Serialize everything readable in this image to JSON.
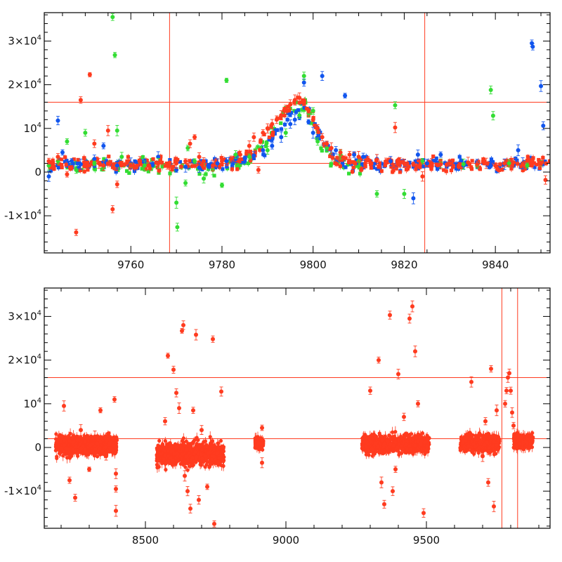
{
  "colors": {
    "red": "#ff3b1f",
    "green": "#33dd33",
    "blue": "#1155ee",
    "frame": "#000000"
  },
  "chart_data": [
    {
      "type": "scatter",
      "id": "top",
      "title": "",
      "xlabel": "",
      "ylabel": "",
      "xlim": [
        9741,
        9852
      ],
      "ylim": [
        -18500,
        36500
      ],
      "x_ticks": [
        {
          "value": 9760,
          "label": "9760"
        },
        {
          "value": 9780,
          "label": "9780"
        },
        {
          "value": 9800,
          "label": "9800"
        },
        {
          "value": 9820,
          "label": "9820"
        },
        {
          "value": 9840,
          "label": "9840"
        }
      ],
      "y_ticks": [
        {
          "value": 30000,
          "label": "3×10",
          "sup": "4"
        },
        {
          "value": 20000,
          "label": "2×10",
          "sup": "4"
        },
        {
          "value": 10000,
          "label": "10",
          "sup": "4"
        },
        {
          "value": 0,
          "label": "0",
          "sup": ""
        },
        {
          "value": -10000,
          "label": "-1×10",
          "sup": "4"
        }
      ],
      "hlines": [
        16000,
        2000
      ],
      "vlines": [
        9768.5,
        9824.5
      ],
      "series": [
        {
          "name": "blue",
          "color": "blue",
          "points": [
            [
              9742,
              -1000
            ],
            [
              9744,
              11800
            ],
            [
              9745,
              4500
            ],
            [
              9747,
              2500
            ],
            [
              9749,
              1800
            ],
            [
              9752,
              3000
            ],
            [
              9754,
              6000
            ],
            [
              9757,
              1500
            ],
            [
              9760,
              2000
            ],
            [
              9763,
              2500
            ],
            [
              9766,
              3500
            ],
            [
              9770,
              500
            ],
            [
              9772,
              1200
            ],
            [
              9775,
              1000
            ],
            [
              9777,
              1500
            ],
            [
              9779,
              2000
            ],
            [
              9781,
              2500
            ],
            [
              9783,
              3000
            ],
            [
              9785,
              3200
            ],
            [
              9787,
              3800
            ],
            [
              9789,
              5000
            ],
            [
              9791,
              6000
            ],
            [
              9793,
              8000
            ],
            [
              9795,
              11000
            ],
            [
              9796,
              12000
            ],
            [
              9797,
              12500
            ],
            [
              9798,
              20500
            ],
            [
              9799,
              11500
            ],
            [
              9800,
              9000
            ],
            [
              9801,
              8000
            ],
            [
              9802,
              22000
            ],
            [
              9803,
              6000
            ],
            [
              9805,
              5000
            ],
            [
              9807,
              17500
            ],
            [
              9809,
              4000
            ],
            [
              9811,
              3500
            ],
            [
              9814,
              3000
            ],
            [
              9817,
              2500
            ],
            [
              9820,
              2000
            ],
            [
              9822,
              -6000
            ],
            [
              9823,
              4000
            ],
            [
              9825,
              2000
            ],
            [
              9828,
              4000
            ],
            [
              9830,
              2000
            ],
            [
              9833,
              1500
            ],
            [
              9836,
              2000
            ],
            [
              9839,
              1500
            ],
            [
              9842,
              1800
            ],
            [
              9845,
              5000
            ],
            [
              9846,
              2000
            ],
            [
              9848,
              29500
            ],
            [
              9848.2,
              28700
            ],
            [
              9850,
              19700
            ],
            [
              9850.5,
              10600
            ]
          ]
        },
        {
          "name": "green",
          "color": "green",
          "points": [
            [
              9742,
              1500
            ],
            [
              9744,
              2500
            ],
            [
              9746,
              7000
            ],
            [
              9748,
              500
            ],
            [
              9750,
              9000
            ],
            [
              9752,
              2000
            ],
            [
              9754,
              1000
            ],
            [
              9756,
              35500
            ],
            [
              9756.5,
              26800
            ],
            [
              9757,
              9500
            ],
            [
              9758,
              3500
            ],
            [
              9760,
              1500
            ],
            [
              9763,
              1500
            ],
            [
              9766,
              2000
            ],
            [
              9770,
              -7000
            ],
            [
              9770.2,
              -12600
            ],
            [
              9772,
              -2500
            ],
            [
              9772.5,
              5500
            ],
            [
              9774,
              2500
            ],
            [
              9776,
              -1500
            ],
            [
              9778,
              500
            ],
            [
              9780,
              -3000
            ],
            [
              9781,
              21000
            ],
            [
              9783,
              4000
            ],
            [
              9786,
              3500
            ],
            [
              9790,
              5000
            ],
            [
              9794,
              9000
            ],
            [
              9797,
              13000
            ],
            [
              9798,
              22000
            ],
            [
              9799,
              13500
            ],
            [
              9800,
              14000
            ],
            [
              9801,
              7000
            ],
            [
              9803,
              5500
            ],
            [
              9806,
              4000
            ],
            [
              9810,
              2500
            ],
            [
              9814,
              -5000
            ],
            [
              9818,
              15300
            ],
            [
              9820,
              -5000
            ],
            [
              9824,
              2500
            ],
            [
              9828,
              2000
            ],
            [
              9833,
              1800
            ],
            [
              9836,
              1500
            ],
            [
              9839,
              18800
            ],
            [
              9839.5,
              12900
            ],
            [
              9843,
              2000
            ],
            [
              9847,
              1500
            ],
            [
              9850,
              2000
            ]
          ]
        },
        {
          "name": "red",
          "color": "red",
          "points": [
            [
              9742,
              2500
            ],
            [
              9743,
              1500
            ],
            [
              9744,
              3500
            ],
            [
              9746,
              -500
            ],
            [
              9747,
              1000
            ],
            [
              9748,
              -13800
            ],
            [
              9749,
              16500
            ],
            [
              9751,
              22300
            ],
            [
              9752,
              6500
            ],
            [
              9753,
              2000
            ],
            [
              9754,
              1500
            ],
            [
              9755,
              9500
            ],
            [
              9756,
              -8500
            ],
            [
              9757,
              -2800
            ],
            [
              9758,
              2000
            ],
            [
              9760,
              1500
            ],
            [
              9762,
              2500
            ],
            [
              9764,
              1500
            ],
            [
              9766,
              2000
            ],
            [
              9768,
              1500
            ],
            [
              9770,
              2000
            ],
            [
              9772,
              2500
            ],
            [
              9773,
              6500
            ],
            [
              9774,
              8000
            ],
            [
              9775,
              3500
            ],
            [
              9776,
              2500
            ],
            [
              9778,
              1500
            ],
            [
              9780,
              2500
            ],
            [
              9782,
              3000
            ],
            [
              9784,
              4000
            ],
            [
              9786,
              6000
            ],
            [
              9787,
              8000
            ],
            [
              9788,
              500
            ],
            [
              9789,
              9000
            ],
            [
              9790,
              10000
            ],
            [
              9791,
              11000
            ],
            [
              9792,
              12000
            ],
            [
              9793,
              13000
            ],
            [
              9794,
              14500
            ],
            [
              9795,
              15500
            ],
            [
              9796,
              16500
            ],
            [
              9797,
              17000
            ],
            [
              9798,
              16000
            ],
            [
              9799,
              14000
            ],
            [
              9800,
              12000
            ],
            [
              9801,
              10000
            ],
            [
              9802,
              8000
            ],
            [
              9803,
              6500
            ],
            [
              9804,
              5500
            ],
            [
              9806,
              4500
            ],
            [
              9808,
              4000
            ],
            [
              9810,
              3500
            ],
            [
              9812,
              3000
            ],
            [
              9814,
              2800
            ],
            [
              9816,
              2500
            ],
            [
              9818,
              10200
            ],
            [
              9819,
              2200
            ],
            [
              9820,
              2000
            ],
            [
              9822,
              1800
            ],
            [
              9824,
              -1000
            ],
            [
              9826,
              2000
            ],
            [
              9828,
              1800
            ],
            [
              9830,
              2000
            ],
            [
              9832,
              1500
            ],
            [
              9834,
              2200
            ],
            [
              9836,
              1800
            ],
            [
              9838,
              2000
            ],
            [
              9840,
              1500
            ],
            [
              9842,
              2000
            ],
            [
              9844,
              2200
            ],
            [
              9846,
              1800
            ],
            [
              9848,
              2500
            ],
            [
              9850,
              2000
            ],
            [
              9851,
              -1800
            ]
          ]
        }
      ]
    },
    {
      "type": "scatter",
      "id": "bottom",
      "title": "",
      "xlabel": "",
      "ylabel": "",
      "xlim": [
        8140,
        9940
      ],
      "ylim": [
        -18500,
        36500
      ],
      "x_ticks": [
        {
          "value": 8500,
          "label": "8500"
        },
        {
          "value": 9000,
          "label": "9000"
        },
        {
          "value": 9500,
          "label": "9500"
        }
      ],
      "y_ticks": [
        {
          "value": 30000,
          "label": "3×10",
          "sup": "4"
        },
        {
          "value": 20000,
          "label": "2×10",
          "sup": "4"
        },
        {
          "value": 10000,
          "label": "10",
          "sup": "4"
        },
        {
          "value": 0,
          "label": "0",
          "sup": ""
        },
        {
          "value": -10000,
          "label": "-1×10",
          "sup": "4"
        }
      ],
      "hlines": [
        16000,
        2000
      ],
      "vlines": [
        9768.5,
        9824.5
      ],
      "segments": [
        {
          "range": [
            8180,
            8400
          ],
          "center": 500,
          "spread": 2000
        },
        {
          "range": [
            8540,
            8780
          ],
          "center": -1500,
          "spread": 2500
        },
        {
          "range": [
            8890,
            8920
          ],
          "center": 1000,
          "spread": 1200
        },
        {
          "range": [
            9270,
            9510
          ],
          "center": 800,
          "spread": 1800
        },
        {
          "range": [
            9620,
            9760
          ],
          "center": 1000,
          "spread": 1800
        },
        {
          "range": [
            9810,
            9880
          ],
          "center": 1500,
          "spread": 1500
        }
      ],
      "series": [
        {
          "name": "red",
          "color": "red",
          "points": [
            [
              8210,
              9500
            ],
            [
              8230,
              -7500
            ],
            [
              8250,
              -11500
            ],
            [
              8270,
              4000
            ],
            [
              8300,
              -5000
            ],
            [
              8320,
              2500
            ],
            [
              8340,
              8500
            ],
            [
              8360,
              -2000
            ],
            [
              8390,
              11000
            ],
            [
              8395,
              -6000
            ],
            [
              8395,
              -9500
            ],
            [
              8395,
              -14500
            ],
            [
              8570,
              6000
            ],
            [
              8580,
              21000
            ],
            [
              8600,
              17800
            ],
            [
              8610,
              12500
            ],
            [
              8620,
              9000
            ],
            [
              8630,
              26700
            ],
            [
              8635,
              28000
            ],
            [
              8640,
              -6500
            ],
            [
              8650,
              -10000
            ],
            [
              8660,
              -14000
            ],
            [
              8670,
              8500
            ],
            [
              8680,
              25800
            ],
            [
              8690,
              -12000
            ],
            [
              8700,
              4000
            ],
            [
              8720,
              -9000
            ],
            [
              8740,
              24800
            ],
            [
              8745,
              -17500
            ],
            [
              8760,
              -3500
            ],
            [
              8770,
              12800
            ],
            [
              8915,
              4500
            ],
            [
              8915,
              -3500
            ],
            [
              9300,
              13000
            ],
            [
              9330,
              20000
            ],
            [
              9340,
              -8000
            ],
            [
              9350,
              -13000
            ],
            [
              9370,
              30300
            ],
            [
              9380,
              -10000
            ],
            [
              9390,
              -5000
            ],
            [
              9400,
              16800
            ],
            [
              9420,
              7000
            ],
            [
              9440,
              29500
            ],
            [
              9450,
              32300
            ],
            [
              9460,
              22000
            ],
            [
              9470,
              10000
            ],
            [
              9490,
              -15000
            ],
            [
              9660,
              15000
            ],
            [
              9700,
              -2000
            ],
            [
              9710,
              6000
            ],
            [
              9720,
              -8000
            ],
            [
              9730,
              18000
            ],
            [
              9740,
              -13500
            ],
            [
              9750,
              8500
            ],
            [
              9780,
              10000
            ],
            [
              9785,
              13000
            ],
            [
              9790,
              16000
            ],
            [
              9795,
              17000
            ],
            [
              9800,
              13000
            ],
            [
              9805,
              8000
            ],
            [
              9810,
              5000
            ]
          ]
        }
      ]
    }
  ]
}
